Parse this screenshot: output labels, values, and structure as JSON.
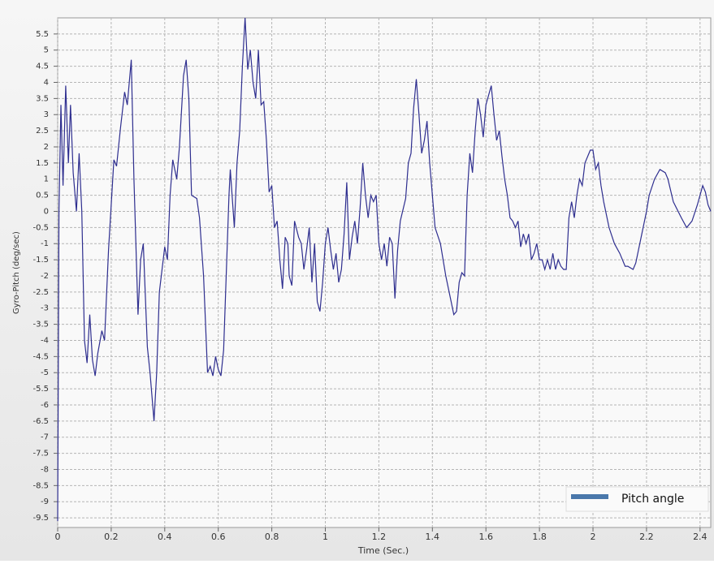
{
  "chart_data": {
    "type": "line",
    "y_label": "Gyro-Pitch (deg/sec)",
    "x_label": "Time (Sec.)",
    "xlim": [
      0,
      2.44
    ],
    "ylim": [
      -9.8,
      6
    ],
    "xticks": [
      0,
      0.2,
      0.4,
      0.6,
      0.8,
      1,
      1.2,
      1.4,
      1.6,
      1.8,
      2,
      2.2,
      2.4
    ],
    "yticks": [
      5.5,
      5,
      4.5,
      4,
      3.5,
      3,
      2.5,
      2,
      1.5,
      1,
      0.5,
      0,
      -0.5,
      -1,
      -1.5,
      -2,
      -2.5,
      -3,
      -3.5,
      -4,
      -4.5,
      -5,
      -5.5,
      -6,
      -6.5,
      -7,
      -7.5,
      -8,
      -8.5,
      -9,
      -9.5
    ],
    "grid": true,
    "legend": "lower right",
    "series": [
      {
        "name": "Pitch angle",
        "color": "#2e2e8f",
        "legend_color": "#4a78ab",
        "x": [
          0,
          0.005,
          0.012,
          0.02,
          0.03,
          0.04,
          0.048,
          0.058,
          0.07,
          0.08,
          0.09,
          0.1,
          0.11,
          0.12,
          0.13,
          0.14,
          0.15,
          0.165,
          0.175,
          0.19,
          0.21,
          0.22,
          0.235,
          0.25,
          0.26,
          0.275,
          0.285,
          0.3,
          0.31,
          0.32,
          0.335,
          0.345,
          0.36,
          0.37,
          0.38,
          0.4,
          0.41,
          0.42,
          0.43,
          0.445,
          0.455,
          0.47,
          0.48,
          0.49,
          0.5,
          0.52,
          0.53,
          0.545,
          0.56,
          0.57,
          0.58,
          0.59,
          0.6,
          0.61,
          0.62,
          0.64,
          0.645,
          0.66,
          0.67,
          0.68,
          0.69,
          0.7,
          0.71,
          0.72,
          0.73,
          0.74,
          0.75,
          0.76,
          0.77,
          0.78,
          0.79,
          0.8,
          0.81,
          0.82,
          0.83,
          0.84,
          0.85,
          0.86,
          0.865,
          0.875,
          0.885,
          0.9,
          0.91,
          0.92,
          0.93,
          0.94,
          0.95,
          0.96,
          0.97,
          0.98,
          0.99,
          1.0,
          1.01,
          1.02,
          1.03,
          1.04,
          1.05,
          1.06,
          1.07,
          1.08,
          1.09,
          1.1,
          1.11,
          1.12,
          1.13,
          1.14,
          1.15,
          1.16,
          1.17,
          1.18,
          1.19,
          1.2,
          1.21,
          1.22,
          1.23,
          1.24,
          1.25,
          1.26,
          1.27,
          1.28,
          1.3,
          1.31,
          1.32,
          1.33,
          1.34,
          1.35,
          1.36,
          1.37,
          1.38,
          1.39,
          1.41,
          1.43,
          1.45,
          1.47,
          1.48,
          1.49,
          1.5,
          1.51,
          1.52,
          1.53,
          1.54,
          1.55,
          1.56,
          1.57,
          1.58,
          1.59,
          1.6,
          1.62,
          1.63,
          1.64,
          1.65,
          1.66,
          1.67,
          1.68,
          1.69,
          1.7,
          1.71,
          1.72,
          1.73,
          1.74,
          1.75,
          1.76,
          1.77,
          1.78,
          1.79,
          1.8,
          1.81,
          1.82,
          1.83,
          1.84,
          1.85,
          1.86,
          1.87,
          1.88,
          1.89,
          1.9,
          1.91,
          1.92,
          1.93,
          1.94,
          1.95,
          1.96,
          1.97,
          1.99,
          2.0,
          2.01,
          2.02,
          2.03,
          2.04,
          2.06,
          2.08,
          2.1,
          2.12,
          2.13,
          2.15,
          2.16,
          2.18,
          2.2,
          2.21,
          2.23,
          2.25,
          2.27,
          2.28,
          2.3,
          2.33,
          2.35,
          2.37,
          2.39,
          2.41,
          2.42,
          2.43,
          2.44
        ],
        "values": [
          -9.6,
          0,
          3.3,
          0.8,
          3.9,
          1.5,
          3.3,
          1.2,
          0,
          1.8,
          0,
          -4.0,
          -4.7,
          -3.2,
          -4.6,
          -5.1,
          -4.4,
          -3.7,
          -4.0,
          -1.2,
          1.6,
          1.4,
          2.6,
          3.7,
          3.3,
          4.7,
          1.0,
          -3.2,
          -1.5,
          -1.0,
          -4.2,
          -5.0,
          -6.5,
          -5.0,
          -2.5,
          -1.1,
          -1.5,
          0.5,
          1.6,
          1.0,
          2.0,
          4.2,
          4.7,
          3.5,
          0.5,
          0.4,
          -0.2,
          -2.0,
          -5.0,
          -4.8,
          -5.1,
          -4.5,
          -4.9,
          -5.1,
          -4.3,
          0.5,
          1.3,
          -0.5,
          1.5,
          2.5,
          4.5,
          6.0,
          4.4,
          5.0,
          4.0,
          3.5,
          5.0,
          3.3,
          3.4,
          2.2,
          0.6,
          0.8,
          -0.5,
          -0.3,
          -1.5,
          -2.4,
          -0.8,
          -1.0,
          -2.0,
          -2.3,
          -0.3,
          -0.8,
          -1.0,
          -1.8,
          -1.2,
          -0.5,
          -2.2,
          -1.0,
          -2.8,
          -3.1,
          -2.2,
          -1.0,
          -0.5,
          -1.2,
          -1.8,
          -1.3,
          -2.2,
          -1.8,
          -0.7,
          0.9,
          -1.5,
          -0.8,
          -0.3,
          -1.0,
          0.1,
          1.5,
          0.5,
          -0.2,
          0.5,
          0.3,
          0.5,
          -1.0,
          -1.5,
          -1.0,
          -1.7,
          -0.8,
          -1.0,
          -2.7,
          -1.2,
          -0.3,
          0.4,
          1.5,
          1.8,
          3.2,
          4.1,
          3.0,
          1.8,
          2.2,
          2.8,
          1.5,
          -0.5,
          -1.0,
          -2.0,
          -2.8,
          -3.2,
          -3.1,
          -2.2,
          -1.9,
          -2.0,
          0.5,
          1.8,
          1.2,
          2.5,
          3.5,
          3.0,
          2.3,
          3.3,
          3.9,
          3.0,
          2.2,
          2.5,
          1.7,
          1.0,
          0.5,
          -0.2,
          -0.3,
          -0.5,
          -0.3,
          -1.1,
          -0.7,
          -1.0,
          -0.7,
          -1.5,
          -1.3,
          -1.0,
          -1.5,
          -1.5,
          -1.8,
          -1.5,
          -1.8,
          -1.3,
          -1.8,
          -1.5,
          -1.7,
          -1.8,
          -1.8,
          -0.2,
          0.3,
          -0.2,
          0.5,
          1.0,
          0.8,
          1.5,
          1.9,
          1.9,
          1.3,
          1.5,
          0.8,
          0.3,
          -0.5,
          -1.0,
          -1.3,
          -1.7,
          -1.7,
          -1.8,
          -1.6,
          -0.8,
          0.0,
          0.5,
          1.0,
          1.3,
          1.2,
          1.0,
          0.3,
          -0.2,
          -0.5,
          -0.3,
          0.2,
          0.8,
          0.6,
          0.2,
          0.0
        ]
      }
    ]
  }
}
